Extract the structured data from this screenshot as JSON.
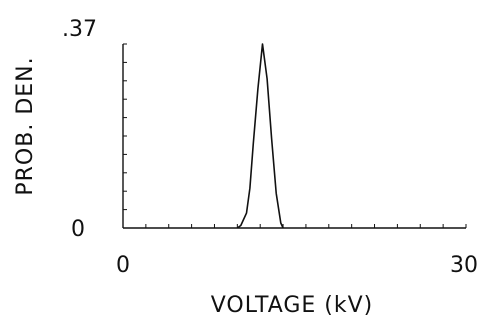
{
  "chart_data": {
    "type": "line",
    "title": "",
    "xlabel": "VOLTAGE (kV)",
    "ylabel": "PROB. DEN.",
    "xlim": [
      0,
      30
    ],
    "ylim": [
      0,
      0.37
    ],
    "x_tick_labels": [
      "0",
      "30"
    ],
    "y_tick_labels": [
      "0",
      ".37"
    ],
    "series": [
      {
        "x": [
          0,
          10,
          10.3,
          10.8,
          11.1,
          11.4,
          11.8,
          12.2,
          12.6,
          13.0,
          13.4,
          13.8,
          14.0,
          30
        ],
        "y": [
          0,
          0,
          0.005,
          0.03,
          0.08,
          0.17,
          0.28,
          0.37,
          0.3,
          0.18,
          0.07,
          0.01,
          0,
          0
        ]
      }
    ],
    "grid": false,
    "legend": "none",
    "colors": {
      "line": "#111111",
      "background": "#ffffff"
    }
  }
}
